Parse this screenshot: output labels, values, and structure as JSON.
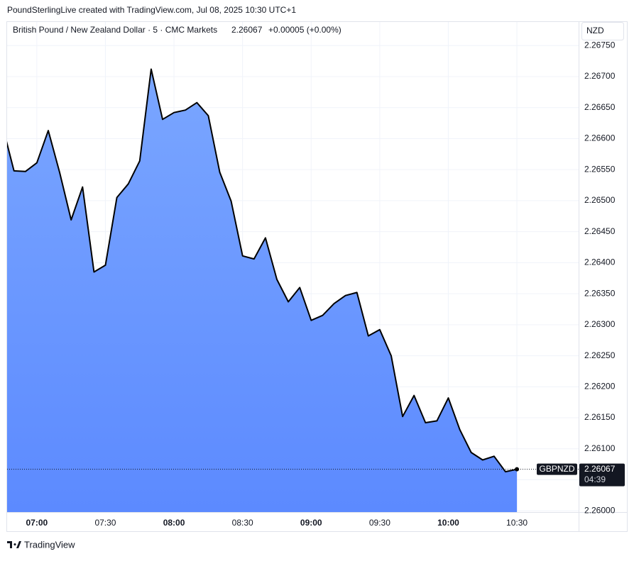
{
  "header": "PoundSterlingLive created with TradingView.com, Jul 08, 2025 10:30 UTC+1",
  "chart_data": {
    "type": "area",
    "title": "British Pound / New Zealand Dollar · 5 · CMC Markets",
    "last_price": "2.26067",
    "change": "+0.00005 (+0.00%)",
    "currency": "NZD",
    "symbol": "GBPNZD",
    "countdown": "04:39",
    "line_color": "#000000",
    "fill_top": "#7aa6ff",
    "fill_bottom": "#5c8aff",
    "grid": true,
    "x": [
      "06:45",
      "06:50",
      "06:55",
      "07:00",
      "07:05",
      "07:10",
      "07:15",
      "07:20",
      "07:25",
      "07:30",
      "07:35",
      "07:40",
      "07:45",
      "07:50",
      "07:55",
      "08:00",
      "08:05",
      "08:10",
      "08:15",
      "08:20",
      "08:25",
      "08:30",
      "08:35",
      "08:40",
      "08:45",
      "08:50",
      "08:55",
      "09:00",
      "09:05",
      "09:10",
      "09:15",
      "09:20",
      "09:25",
      "09:30",
      "09:35",
      "09:40",
      "09:45",
      "09:50",
      "09:55",
      "10:00",
      "10:05",
      "10:10",
      "10:15",
      "10:20",
      "10:25",
      "10:30"
    ],
    "values": [
      2.2662,
      2.26548,
      2.26547,
      2.26561,
      2.26613,
      2.26545,
      2.26469,
      2.26522,
      2.26385,
      2.26396,
      2.26505,
      2.26527,
      2.26564,
      2.26712,
      2.26631,
      2.26642,
      2.26646,
      2.26658,
      2.26637,
      2.26546,
      2.26499,
      2.26411,
      2.26406,
      2.2644,
      2.26373,
      2.26337,
      2.2636,
      2.26307,
      2.26315,
      2.26334,
      2.26347,
      2.26352,
      2.26282,
      2.26292,
      2.2625,
      2.26152,
      2.26186,
      2.26142,
      2.26145,
      2.26182,
      2.26131,
      2.26094,
      2.26082,
      2.26088,
      2.26063,
      2.26067
    ],
    "xlim": [
      "06:47",
      "10:57"
    ],
    "xticks": [
      "07:00",
      "07:30",
      "08:00",
      "08:30",
      "09:00",
      "09:30",
      "10:00",
      "10:30"
    ],
    "ylim": [
      2.25998,
      2.26788
    ],
    "yticks": [
      {
        "value": 2.26,
        "label": "2.26000"
      },
      {
        "value": 2.2605,
        "label": "2.26050"
      },
      {
        "value": 2.261,
        "label": "2.26100"
      },
      {
        "value": 2.2615,
        "label": "2.26150"
      },
      {
        "value": 2.262,
        "label": "2.26200"
      },
      {
        "value": 2.2625,
        "label": "2.26250"
      },
      {
        "value": 2.263,
        "label": "2.26300"
      },
      {
        "value": 2.2635,
        "label": "2.26350"
      },
      {
        "value": 2.264,
        "label": "2.26400"
      },
      {
        "value": 2.2645,
        "label": "2.26450"
      },
      {
        "value": 2.265,
        "label": "2.26500"
      },
      {
        "value": 2.2655,
        "label": "2.26550"
      },
      {
        "value": 2.266,
        "label": "2.26600"
      },
      {
        "value": 2.2665,
        "label": "2.26650"
      },
      {
        "value": 2.267,
        "label": "2.26700"
      },
      {
        "value": 2.2675,
        "label": "2.26750"
      }
    ]
  },
  "footer": {
    "brand": "TradingView"
  }
}
